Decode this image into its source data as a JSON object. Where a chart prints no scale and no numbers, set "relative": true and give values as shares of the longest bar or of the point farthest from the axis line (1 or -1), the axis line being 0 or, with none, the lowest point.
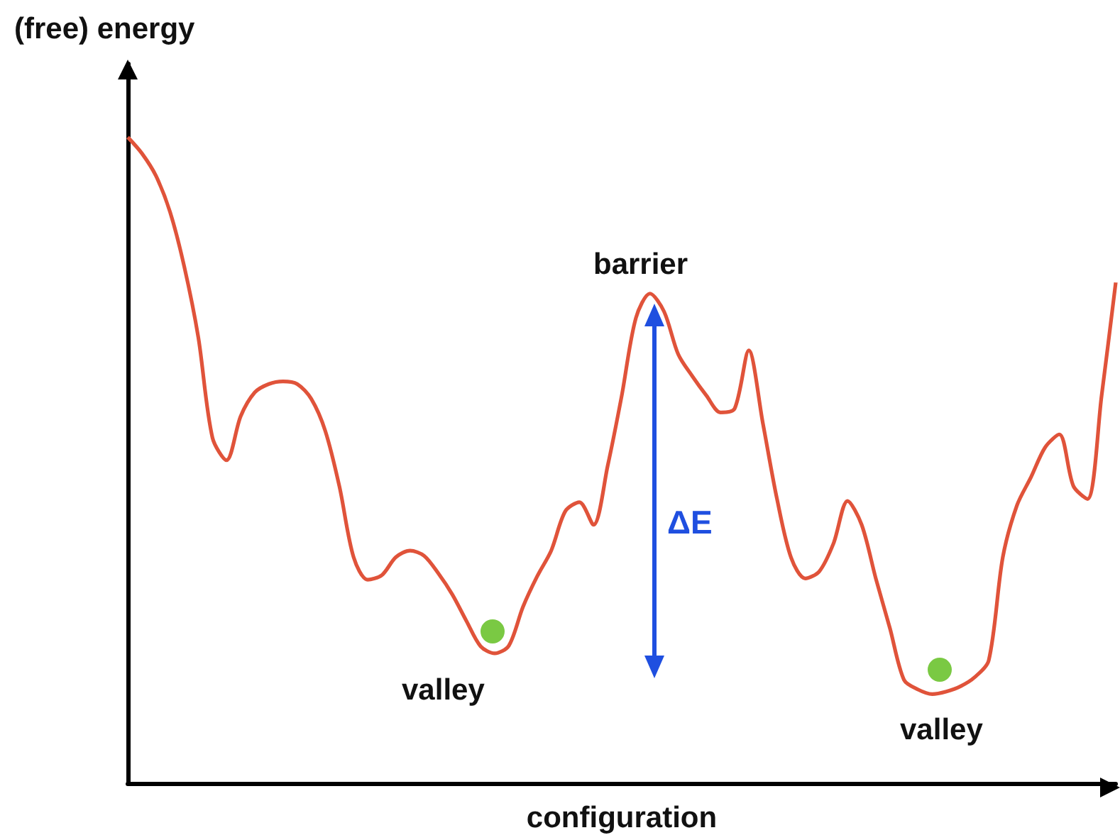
{
  "chart_data": {
    "type": "line",
    "xlabel": "configuration",
    "ylabel": "(free) energy",
    "relative": true,
    "marker": "none",
    "categories": [
      null,
      null,
      null,
      null,
      null,
      null,
      null,
      null,
      null,
      null,
      null,
      null,
      null,
      null,
      null,
      null,
      null,
      null,
      null,
      null,
      null,
      null,
      null,
      null,
      null,
      null,
      null,
      null,
      null,
      null,
      null,
      null,
      null,
      null,
      null,
      null,
      null,
      null,
      null,
      null,
      null,
      null,
      null,
      null,
      null,
      null,
      null,
      null,
      null,
      null,
      null,
      null,
      null,
      null,
      null,
      null,
      null,
      null,
      null,
      null,
      null,
      null,
      null,
      null,
      null,
      null,
      null,
      null,
      null,
      null,
      null
    ],
    "series": [
      {
        "color": "#e0533a",
        "values": [
          1.0,
          0.975,
          0.94,
          0.884,
          0.8,
          0.69,
          0.535,
          0.5,
          0.568,
          0.605,
          0.618,
          0.622,
          0.618,
          0.595,
          0.545,
          0.459,
          0.35,
          0.315,
          0.322,
          0.35,
          0.36,
          0.352,
          0.325,
          0.292,
          0.251,
          0.212,
          0.201,
          0.213,
          0.273,
          0.32,
          0.36,
          0.421,
          0.435,
          0.4,
          0.491,
          0.6,
          0.72,
          0.758,
          0.73,
          0.664,
          0.63,
          0.6,
          0.574,
          0.58,
          0.67,
          0.557,
          0.44,
          0.349,
          0.317,
          0.328,
          0.371,
          0.437,
          0.4,
          0.317,
          0.24,
          0.16,
          0.145,
          0.138,
          0.142,
          0.15,
          0.164,
          0.19,
          0.35,
          0.43,
          0.474,
          0.52,
          0.54,
          0.46,
          0.44,
          0.6,
          0.775
        ]
      }
    ],
    "annotations": [
      "barrier",
      "valley",
      "valley",
      "ΔE"
    ]
  }
}
